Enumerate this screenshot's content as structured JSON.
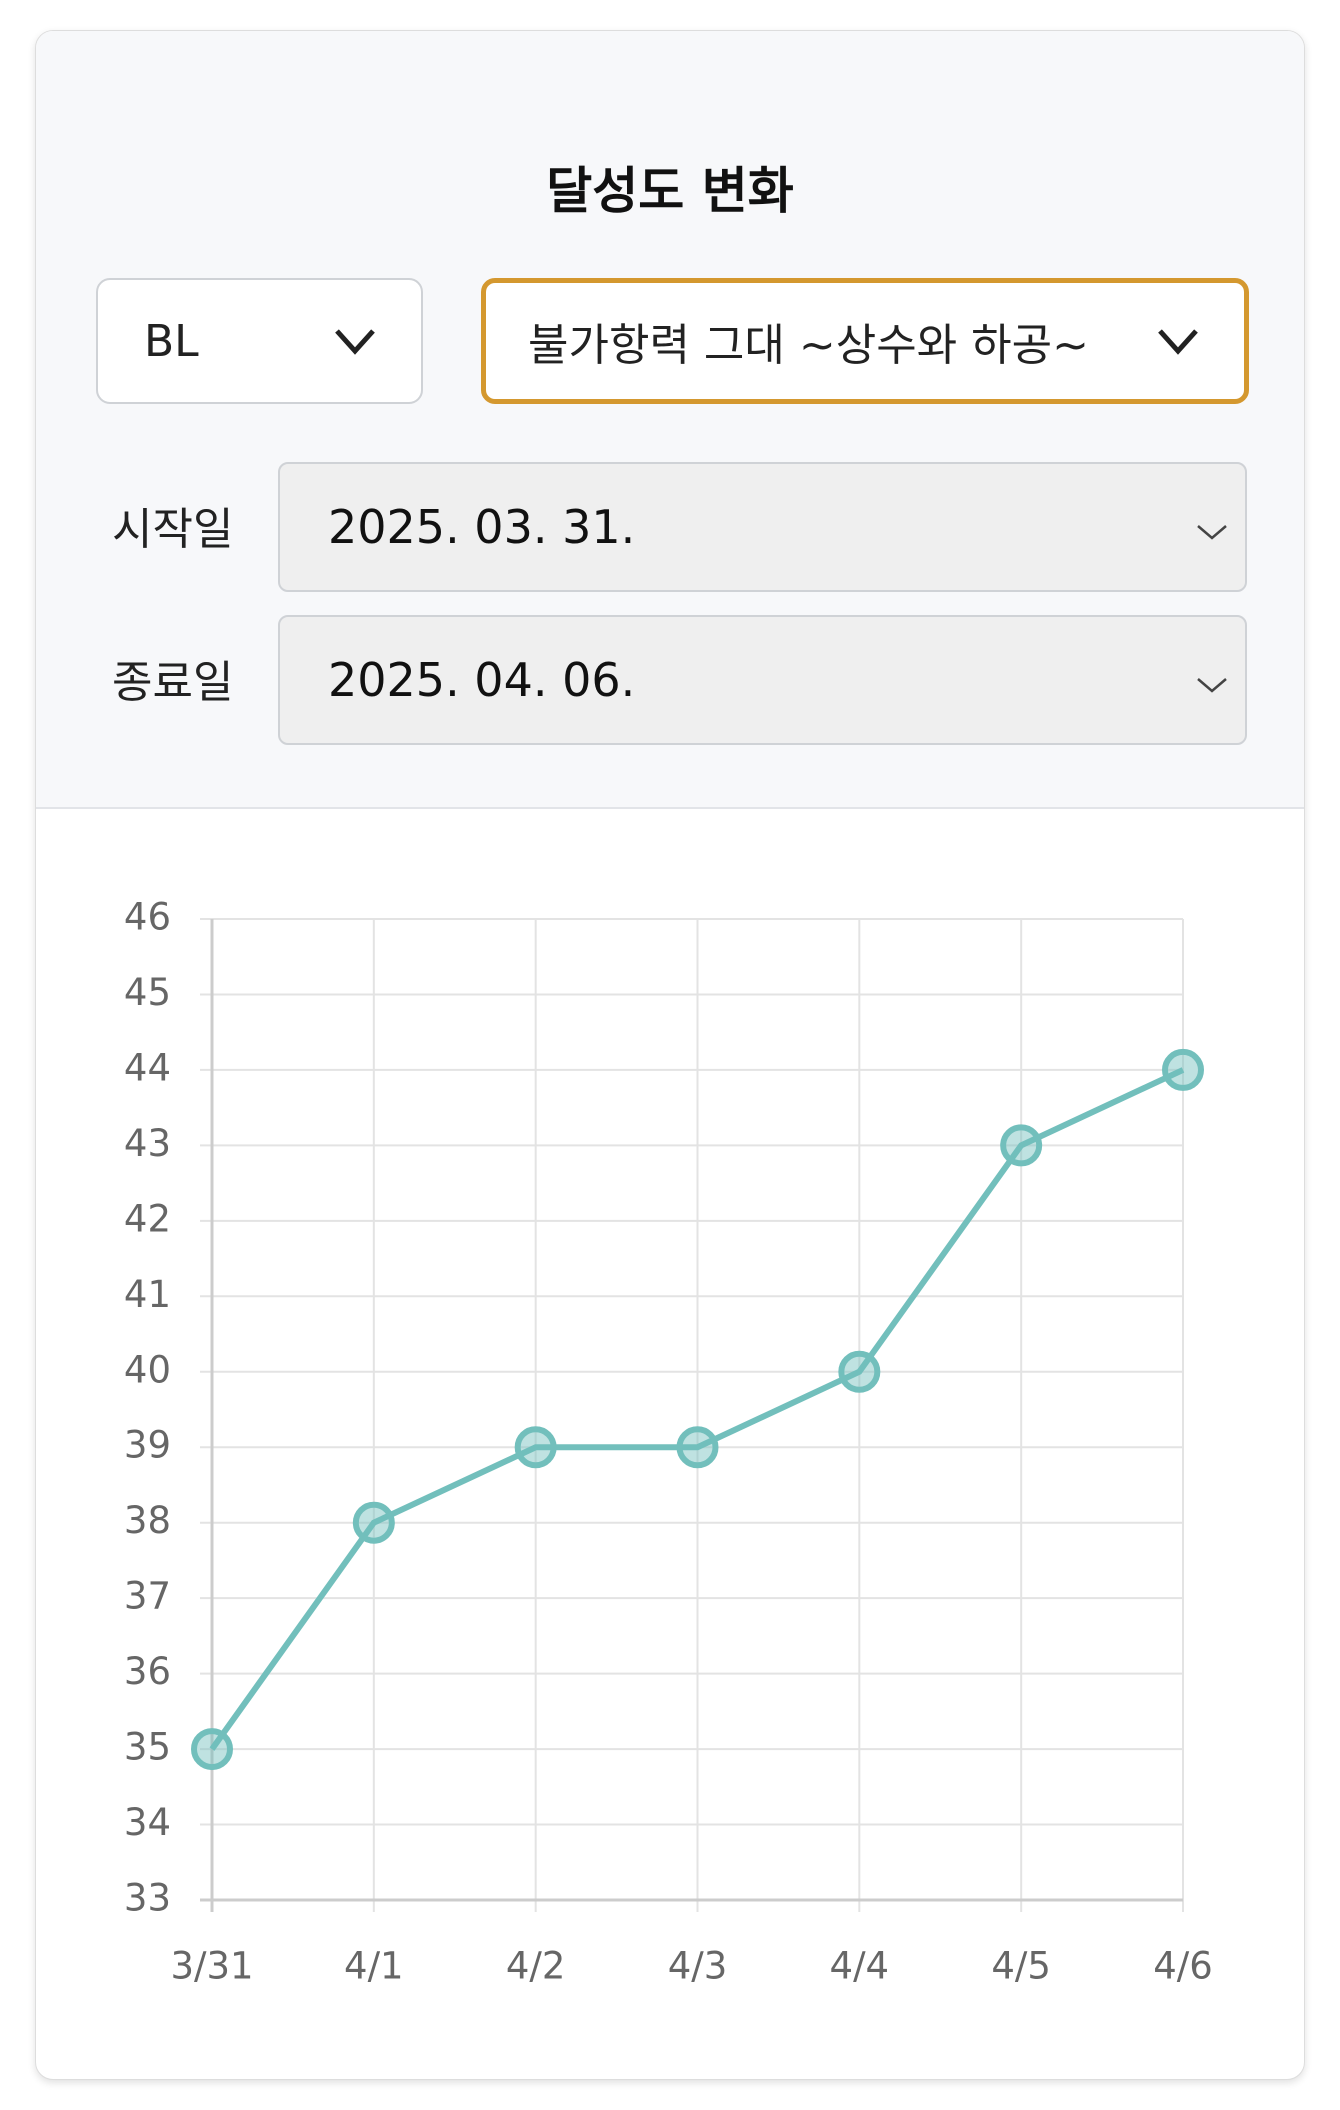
{
  "header": {
    "title": "달성도 변화"
  },
  "filters": {
    "genre": "BL",
    "work": "불가항력 그대 ~상수와 하공~"
  },
  "dates": [
    {
      "label": "시작일",
      "value": "2025. 03. 31."
    },
    {
      "label": "종료일",
      "value": "2025. 04. 06."
    }
  ],
  "chart_data": {
    "type": "line",
    "categories": [
      "3/31",
      "4/1",
      "4/2",
      "4/3",
      "4/4",
      "4/5",
      "4/6"
    ],
    "values": [
      35,
      38,
      39,
      39,
      40,
      43,
      44
    ],
    "color": "#72bfbc",
    "ylim": [
      33,
      46
    ],
    "yticks": [
      33,
      34,
      35,
      36,
      37,
      38,
      39,
      40,
      41,
      42,
      43,
      44,
      45,
      46
    ],
    "grid": true
  }
}
